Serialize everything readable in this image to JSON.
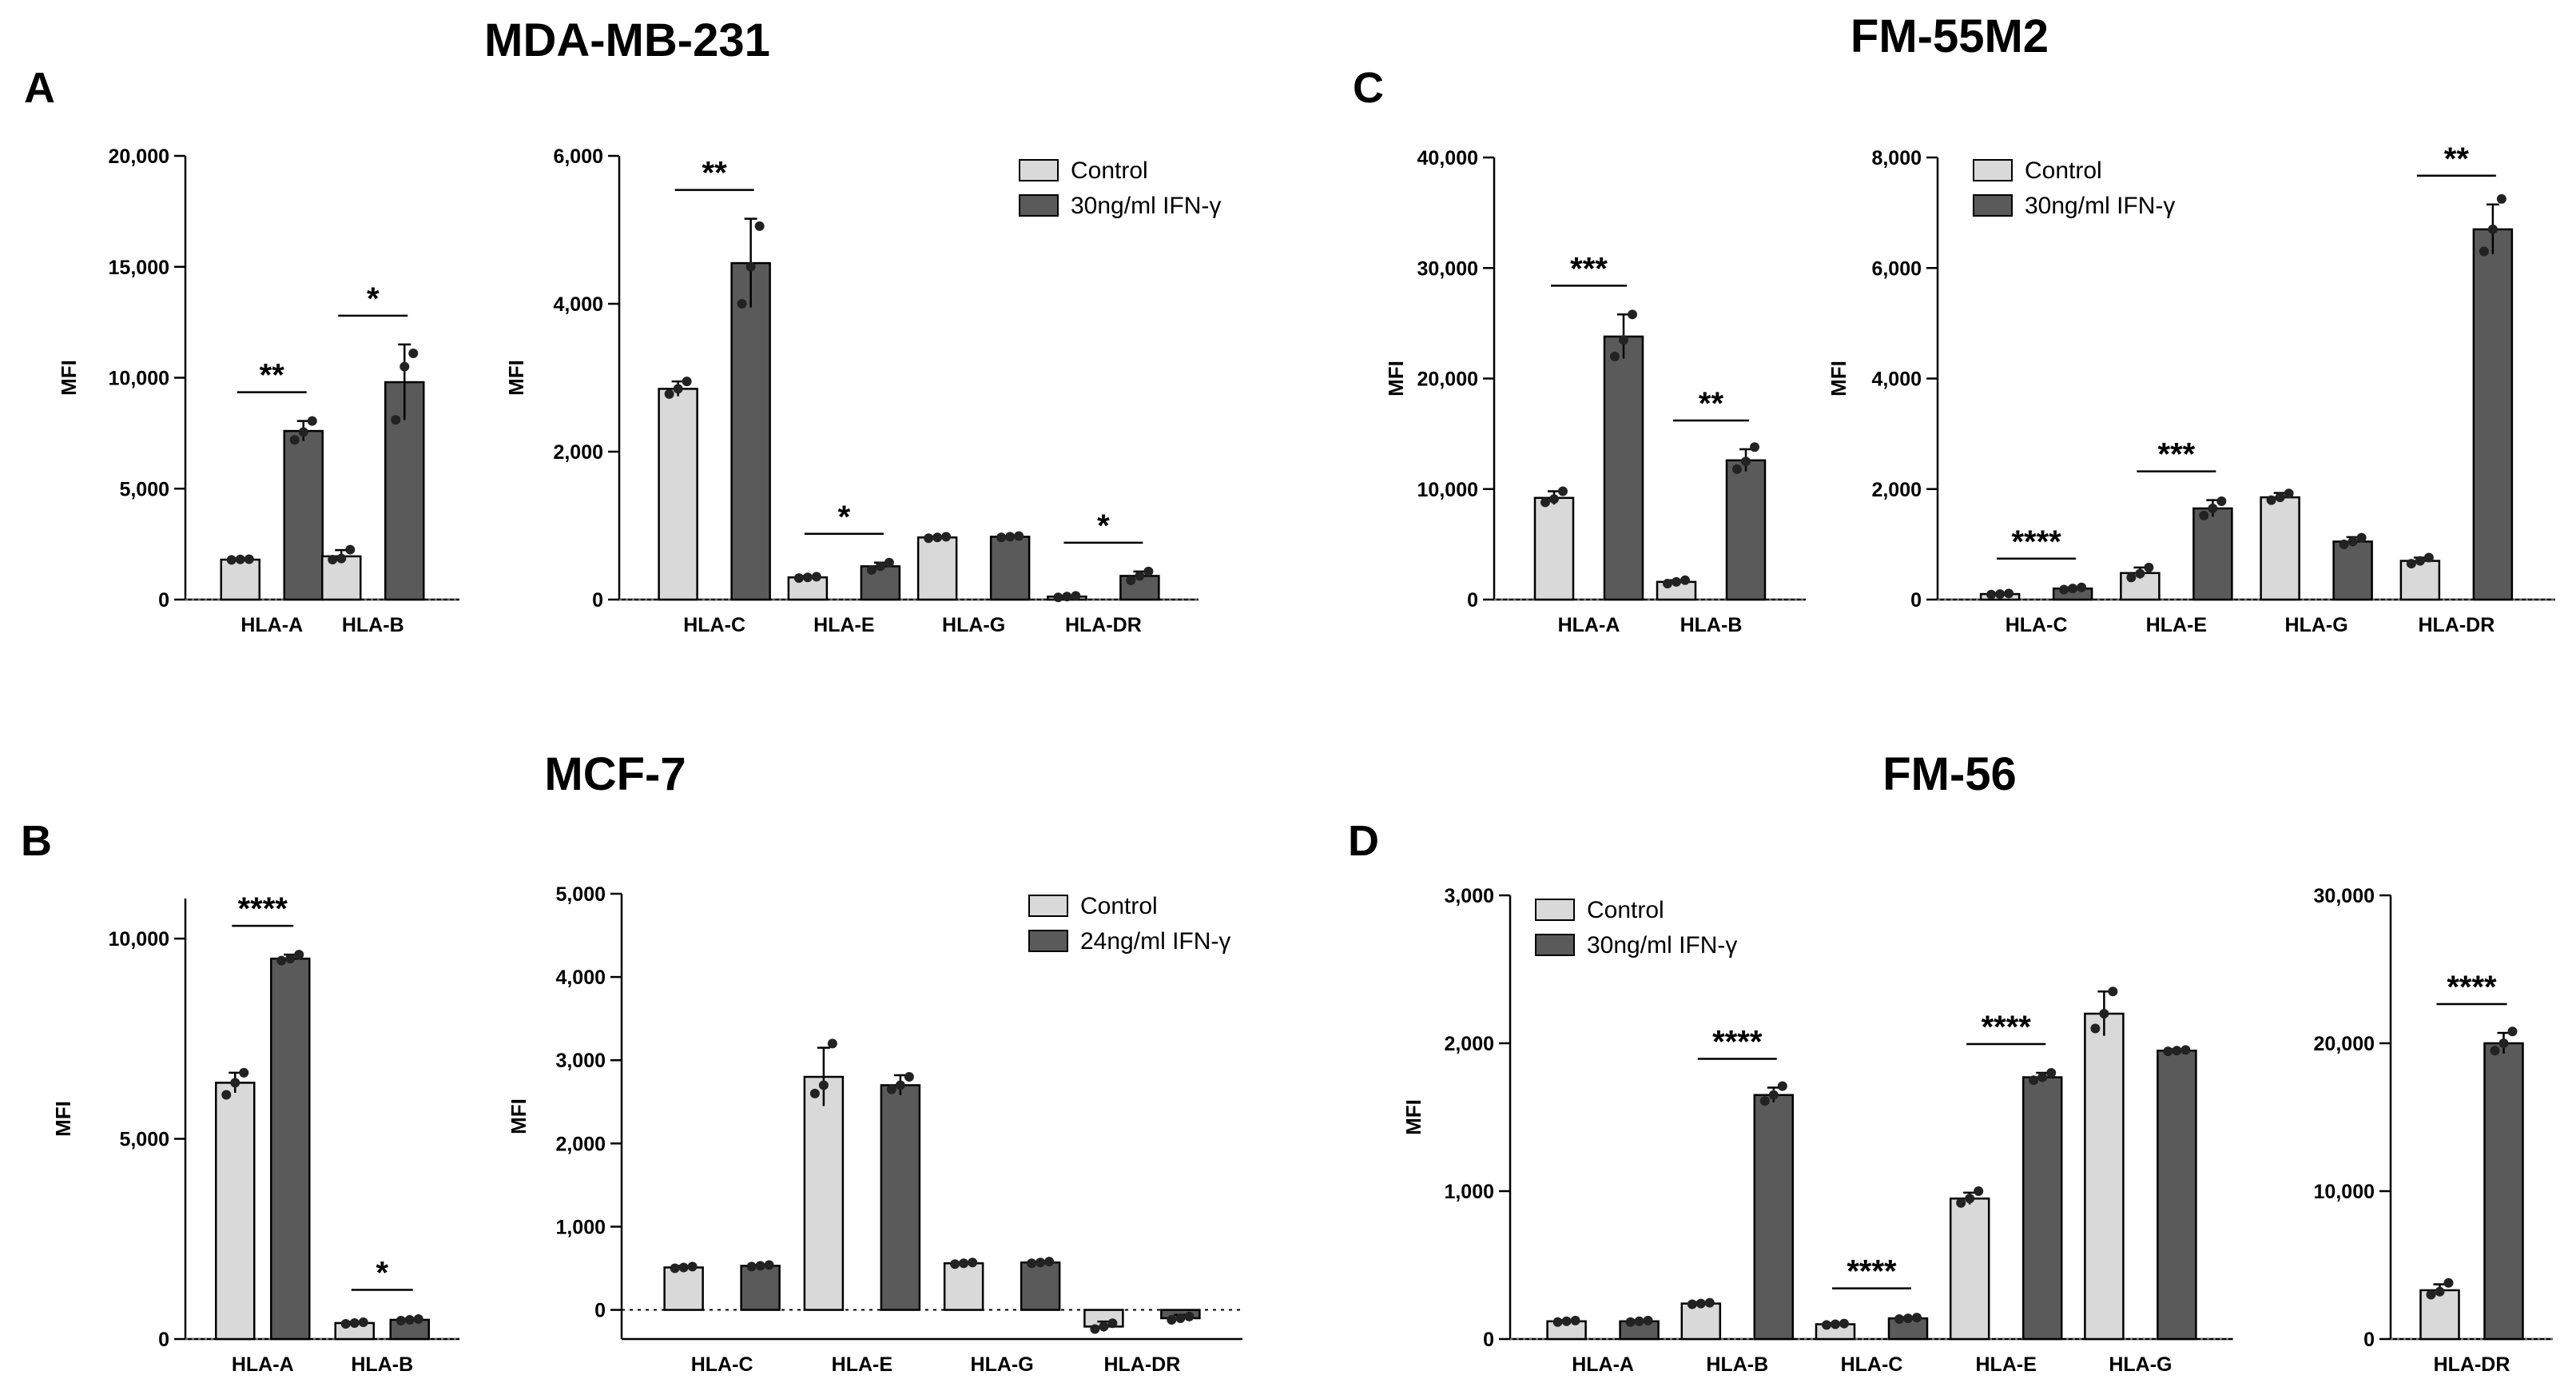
{
  "colors": {
    "control": "#d9d9d9",
    "ifn": "#5a5a5a",
    "axis": "#000000",
    "point": "#222222"
  },
  "panel_titles": {
    "mda": "MDA-MB-231",
    "fm55": "FM-55M2",
    "mcf": "MCF-7",
    "fm56": "FM-56"
  },
  "panel_letters": {
    "a": "A",
    "b": "B",
    "c": "C",
    "d": "D"
  },
  "chart_data": [
    {
      "id": "A1",
      "type": "bar",
      "ylabel": "MFI",
      "ylim": [
        0,
        20000
      ],
      "yticks": [
        0,
        5000,
        10000,
        15000,
        20000
      ],
      "ytick_labels": [
        "0",
        "5,000",
        "10,000",
        "15,000",
        "20,000"
      ],
      "categories": [
        "HLA-A",
        "HLA-B"
      ],
      "series": [
        {
          "name": "Control",
          "values": [
            1800,
            1950
          ],
          "err": [
            60,
            280
          ],
          "points": [
            [
              1790,
              1810,
              1820
            ],
            [
              1800,
              1850,
              2250
            ]
          ]
        },
        {
          "name": "30ng/ml IFN-γ",
          "values": [
            7600,
            9800
          ],
          "err": [
            450,
            1700
          ],
          "points": [
            [
              7200,
              7550,
              8050
            ],
            [
              8100,
              10500,
              11100
            ]
          ]
        }
      ],
      "annotations": [
        "**",
        "*"
      ]
    },
    {
      "id": "A2",
      "type": "bar",
      "ylabel": "MFI",
      "ylim": [
        0,
        6000
      ],
      "yticks": [
        0,
        2000,
        4000,
        6000
      ],
      "ytick_labels": [
        "0",
        "2,000",
        "4,000",
        "6,000"
      ],
      "categories": [
        "HLA-C",
        "HLA-E",
        "HLA-G",
        "HLA-DR"
      ],
      "legend": [
        "Control",
        "30ng/ml IFN-γ"
      ],
      "series": [
        {
          "name": "Control",
          "values": [
            2850,
            300,
            840,
            40
          ],
          "err": [
            100,
            20,
            15,
            10
          ],
          "points": [
            [
              2780,
              2850,
              2950
            ],
            [
              290,
              300,
              310
            ],
            [
              830,
              840,
              850
            ],
            [
              30,
              40,
              50
            ]
          ]
        },
        {
          "name": "30ng/ml IFN-γ",
          "values": [
            4550,
            450,
            850,
            320
          ],
          "err": [
            600,
            50,
            10,
            60
          ],
          "points": [
            [
              4000,
              4500,
              5050
            ],
            [
              400,
              450,
              500
            ],
            [
              840,
              850,
              860
            ],
            [
              260,
              320,
              380
            ]
          ]
        }
      ],
      "annotations": [
        "**",
        "*",
        "",
        "*"
      ]
    },
    {
      "id": "B1",
      "type": "bar",
      "ylabel": "MFI",
      "ylim": [
        0,
        11000
      ],
      "yticks": [
        0,
        5000,
        10000
      ],
      "ytick_labels": [
        "0",
        "5,000",
        "10,000"
      ],
      "categories": [
        "HLA-A",
        "HLA-B"
      ],
      "series": [
        {
          "name": "Control",
          "values": [
            6400,
            400
          ],
          "err": [
            250,
            30
          ],
          "points": [
            [
              6100,
              6400,
              6650
            ],
            [
              380,
              400,
              420
            ]
          ]
        },
        {
          "name": "24ng/ml IFN-γ",
          "values": [
            9500,
            480
          ],
          "err": [
            100,
            30
          ],
          "points": [
            [
              9450,
              9500,
              9600
            ],
            [
              460,
              480,
              500
            ]
          ]
        }
      ],
      "annotations": [
        "****",
        "*"
      ]
    },
    {
      "id": "B2",
      "type": "bar",
      "ylabel": "MFI",
      "ylim": [
        -350,
        5000
      ],
      "yticks": [
        0,
        1000,
        2000,
        3000,
        4000,
        5000
      ],
      "ytick_labels": [
        "0",
        "1,000",
        "2,000",
        "3,000",
        "4,000",
        "5,000"
      ],
      "categories": [
        "HLA-C",
        "HLA-E",
        "HLA-G",
        "HLA-DR"
      ],
      "legend": [
        "Control",
        "24ng/ml IFN-γ"
      ],
      "dotted_zero": true,
      "series": [
        {
          "name": "Control",
          "values": [
            510,
            2800,
            560,
            -200
          ],
          "err": [
            20,
            350,
            15,
            60
          ],
          "points": [
            [
              500,
              510,
              520
            ],
            [
              2600,
              2700,
              3200
            ],
            [
              550,
              560,
              570
            ],
            [
              -230,
              -200,
              -160
            ]
          ]
        },
        {
          "name": "24ng/ml IFN-γ",
          "values": [
            530,
            2700,
            570,
            -100
          ],
          "err": [
            10,
            120,
            10,
            40
          ],
          "points": [
            [
              520,
              530,
              540
            ],
            [
              2650,
              2700,
              2800
            ],
            [
              560,
              570,
              580
            ],
            [
              -120,
              -100,
              -80
            ]
          ]
        }
      ],
      "annotations": [
        "",
        "",
        "",
        ""
      ]
    },
    {
      "id": "C1",
      "type": "bar",
      "ylabel": "MFI",
      "ylim": [
        0,
        40000
      ],
      "yticks": [
        0,
        10000,
        20000,
        30000,
        40000
      ],
      "ytick_labels": [
        "0",
        "10,000",
        "20,000",
        "30,000",
        "40,000"
      ],
      "categories": [
        "HLA-A",
        "HLA-B"
      ],
      "series": [
        {
          "name": "Control",
          "values": [
            9200,
            1600
          ],
          "err": [
            600,
            150
          ],
          "points": [
            [
              8800,
              9100,
              9800
            ],
            [
              1450,
              1600,
              1750
            ]
          ]
        },
        {
          "name": "30ng/ml IFN-γ",
          "values": [
            23800,
            12600
          ],
          "err": [
            2000,
            1000
          ],
          "points": [
            [
              22000,
              23500,
              25800
            ],
            [
              11800,
              12500,
              13800
            ]
          ]
        }
      ],
      "annotations": [
        "***",
        "**"
      ]
    },
    {
      "id": "C2",
      "type": "bar",
      "ylabel": "MFI",
      "ylim": [
        0,
        8000
      ],
      "yticks": [
        0,
        2000,
        4000,
        6000,
        8000
      ],
      "ytick_labels": [
        "0",
        "2,000",
        "4,000",
        "6,000",
        "8,000"
      ],
      "categories": [
        "HLA-C",
        "HLA-E",
        "HLA-G",
        "HLA-DR"
      ],
      "legend": [
        "Control",
        "30ng/ml IFN-γ"
      ],
      "series": [
        {
          "name": "Control",
          "values": [
            100,
            480,
            1850,
            700
          ],
          "err": [
            15,
            100,
            80,
            60
          ],
          "points": [
            [
              90,
              100,
              110
            ],
            [
              400,
              470,
              580
            ],
            [
              1800,
              1850,
              1920
            ],
            [
              650,
              700,
              760
            ]
          ]
        },
        {
          "name": "30ng/ml IFN-γ",
          "values": [
            200,
            1650,
            1050,
            6700
          ],
          "err": [
            20,
            150,
            80,
            450
          ],
          "points": [
            [
              180,
              200,
              220
            ],
            [
              1520,
              1650,
              1780
            ],
            [
              1000,
              1050,
              1120
            ],
            [
              6300,
              6700,
              7250
            ]
          ]
        }
      ],
      "annotations": [
        "****",
        "***",
        "",
        "**"
      ]
    },
    {
      "id": "D1",
      "type": "bar",
      "ylabel": "MFI",
      "ylim": [
        0,
        3000
      ],
      "yticks": [
        0,
        1000,
        2000,
        3000
      ],
      "ytick_labels": [
        "0",
        "1,000",
        "2,000",
        "3,000"
      ],
      "categories": [
        "HLA-A",
        "HLA-B",
        "HLA-C",
        "HLA-E",
        "HLA-G"
      ],
      "legend": [
        "Control",
        "30ng/ml IFN-γ"
      ],
      "series": [
        {
          "name": "Control",
          "values": [
            120,
            240,
            100,
            950,
            2200
          ],
          "err": [
            8,
            10,
            8,
            40,
            150
          ],
          "points": [
            [
              115,
              120,
              125
            ],
            [
              235,
              240,
              245
            ],
            [
              95,
              100,
              105
            ],
            [
              920,
              950,
              1000
            ],
            [
              2100,
              2200,
              2350
            ]
          ]
        },
        {
          "name": "30ng/ml IFN-γ",
          "values": [
            120,
            1650,
            140,
            1770,
            1950
          ],
          "err": [
            8,
            50,
            8,
            30,
            10
          ],
          "points": [
            [
              115,
              120,
              125
            ],
            [
              1610,
              1650,
              1710
            ],
            [
              135,
              140,
              145
            ],
            [
              1750,
              1770,
              1800
            ],
            [
              1945,
              1950,
              1955
            ]
          ]
        }
      ],
      "annotations": [
        "",
        "****",
        "****",
        "****",
        ""
      ]
    },
    {
      "id": "D2",
      "type": "bar",
      "ylabel": "",
      "ylim": [
        0,
        30000
      ],
      "yticks": [
        0,
        10000,
        20000,
        30000
      ],
      "ytick_labels": [
        "0",
        "10,000",
        "20,000",
        "30,000"
      ],
      "categories": [
        "HLA-DR"
      ],
      "series": [
        {
          "name": "Control",
          "values": [
            3300
          ],
          "err": [
            400
          ],
          "points": [
            [
              3000,
              3200,
              3800
            ]
          ]
        },
        {
          "name": "30ng/ml IFN-γ",
          "values": [
            20000
          ],
          "err": [
            700
          ],
          "points": [
            [
              19500,
              20000,
              20800
            ]
          ]
        }
      ],
      "annotations": [
        "****"
      ]
    }
  ]
}
